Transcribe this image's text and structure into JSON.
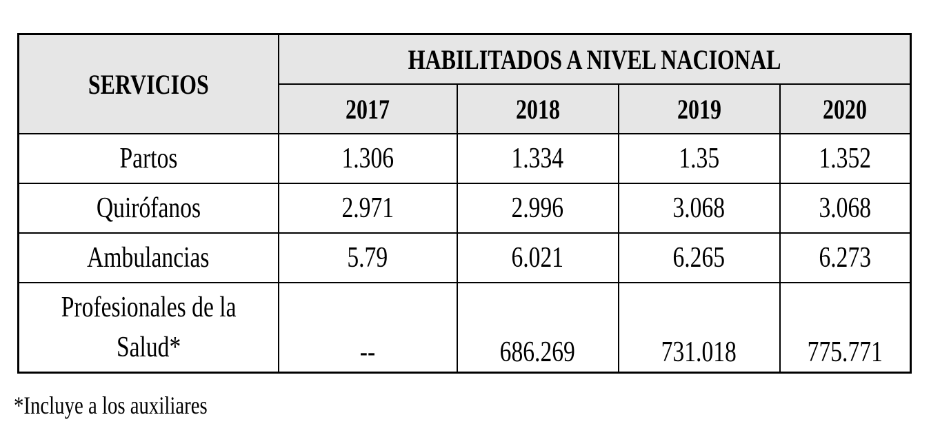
{
  "table": {
    "header": {
      "services_label": "SERVICIOS",
      "group_label": "HABILITADOS A NIVEL NACIONAL",
      "years": [
        "2017",
        "2018",
        "2019",
        "2020"
      ]
    },
    "rows": [
      {
        "service": "Partos",
        "values": [
          "1.306",
          "1.334",
          "1.35",
          "1.352"
        ]
      },
      {
        "service": "Quirófanos",
        "values": [
          "2.971",
          "2.996",
          "3.068",
          "3.068"
        ]
      },
      {
        "service": "Ambulancias",
        "values": [
          "5.79",
          "6.021",
          "6.265",
          "6.273"
        ]
      },
      {
        "service_line1": "Profesionales de la",
        "service_line2": "Salud*",
        "values": [
          "--",
          "686.269",
          "731.018",
          "775.771"
        ]
      }
    ]
  },
  "footnote": "*Incluye a los auxiliares"
}
